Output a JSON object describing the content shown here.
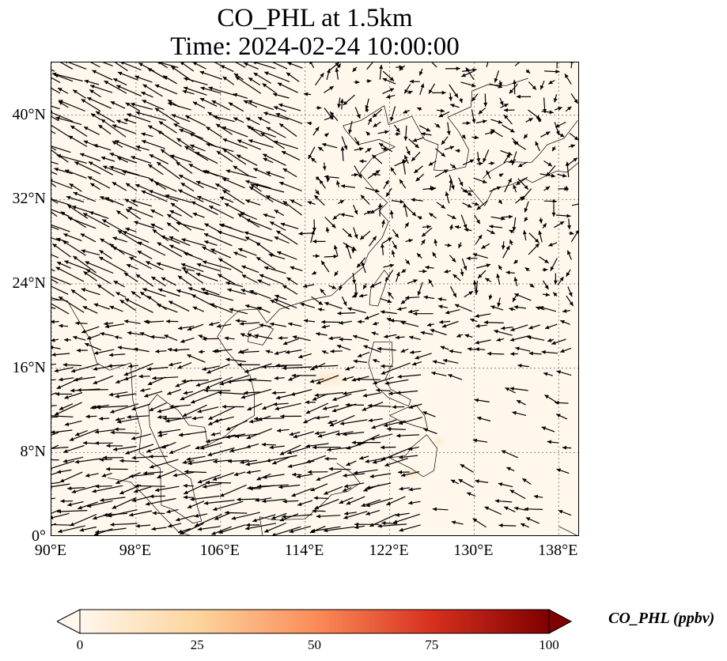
{
  "title": {
    "line1": "CO_PHL at 1.5km",
    "line2": "Time: 2024-02-24 10:00:00"
  },
  "map": {
    "projection": "PlateCarree",
    "lon_range": [
      90,
      140
    ],
    "lat_range": [
      0,
      45
    ],
    "gridlines": true,
    "background_color": "#fff7ec",
    "feature": "coastlines and country borders with wind vectors",
    "lat_ticks": [
      {
        "value": 0,
        "label": "0°"
      },
      {
        "value": 8,
        "label": "8°N"
      },
      {
        "value": 16,
        "label": "16°N"
      },
      {
        "value": 24,
        "label": "24°N"
      },
      {
        "value": 32,
        "label": "32°N"
      },
      {
        "value": 40,
        "label": "40°N"
      }
    ],
    "lon_ticks": [
      {
        "value": 90,
        "label": "90°E"
      },
      {
        "value": 98,
        "label": "98°E"
      },
      {
        "value": 106,
        "label": "106°E"
      },
      {
        "value": 114,
        "label": "114°E"
      },
      {
        "value": 122,
        "label": "122°E"
      },
      {
        "value": 130,
        "label": "130°E"
      },
      {
        "value": 138,
        "label": "138°E"
      }
    ]
  },
  "colorbar": {
    "label": "CO_PHL (ppbv)",
    "min": 0,
    "max": 100,
    "ticks": [
      {
        "value": 0,
        "label": "0"
      },
      {
        "value": 25,
        "label": "25"
      },
      {
        "value": 50,
        "label": "50"
      },
      {
        "value": 75,
        "label": "75"
      },
      {
        "value": 100,
        "label": "100"
      }
    ],
    "extend": "both",
    "colors": [
      "#fff7ec",
      "#fdd49e",
      "#fc8d59",
      "#d7301f",
      "#7f0000"
    ]
  }
}
